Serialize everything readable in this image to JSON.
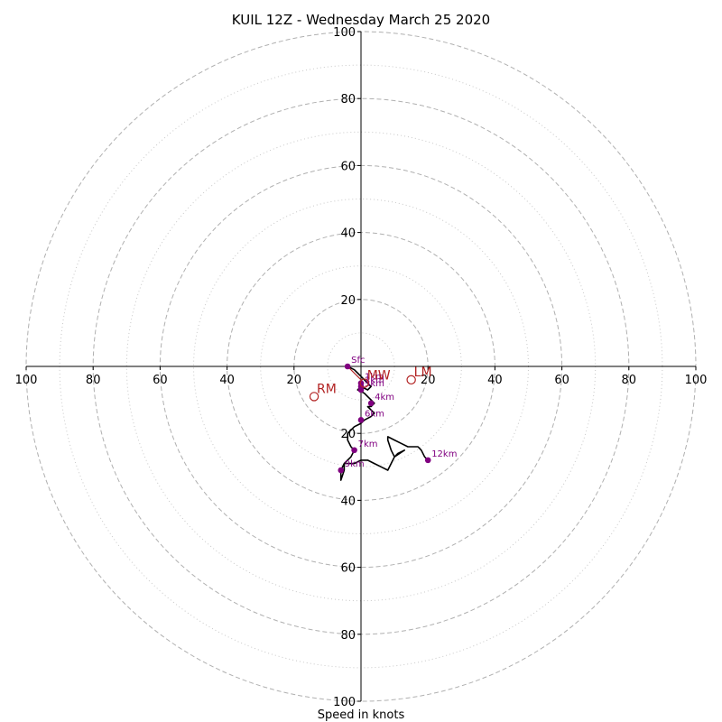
{
  "chart_data": {
    "type": "hodograph",
    "title": "KUIL 12Z - Wednesday March 25 2020",
    "xlabel": "Speed in knots",
    "xlim": [
      -100,
      100
    ],
    "ylim": [
      -100,
      100
    ],
    "ring_major": [
      20,
      40,
      60,
      80,
      100
    ],
    "ring_minor": [
      10,
      30,
      50,
      70,
      90
    ],
    "x_tick_labels": [
      "100",
      "80",
      "60",
      "40",
      "20",
      "20",
      "40",
      "60",
      "80",
      "100"
    ],
    "y_tick_labels": [
      "100",
      "80",
      "60",
      "40",
      "20",
      "20",
      "40",
      "60",
      "80",
      "100"
    ],
    "colors": {
      "trace": "#000000",
      "height_marker": "#800080",
      "motion": "#b22222",
      "grid": "#b0b0b0"
    },
    "trace": [
      [
        -4,
        0
      ],
      [
        -2,
        -1
      ],
      [
        0,
        -3
      ],
      [
        1,
        -4
      ],
      [
        2,
        -5
      ],
      [
        3,
        -6
      ],
      [
        2,
        -7
      ],
      [
        0,
        -6
      ],
      [
        -1,
        -7
      ],
      [
        1,
        -8
      ],
      [
        2,
        -9
      ],
      [
        3,
        -10
      ],
      [
        4,
        -11
      ],
      [
        3,
        -12
      ],
      [
        2,
        -12
      ],
      [
        3,
        -13
      ],
      [
        4,
        -14
      ],
      [
        3,
        -15
      ],
      [
        1,
        -16
      ],
      [
        0,
        -17
      ],
      [
        -2,
        -18
      ],
      [
        -3,
        -19
      ],
      [
        -4,
        -20
      ],
      [
        -4,
        -22
      ],
      [
        -3,
        -24
      ],
      [
        -2,
        -25
      ],
      [
        -3,
        -27
      ],
      [
        -5,
        -29
      ],
      [
        -6,
        -31
      ],
      [
        -6,
        -34
      ],
      [
        -5,
        -31
      ],
      [
        -5,
        -29
      ],
      [
        -2,
        -29
      ],
      [
        0,
        -28
      ],
      [
        2,
        -28
      ],
      [
        4,
        -29
      ],
      [
        6,
        -30
      ],
      [
        8,
        -31
      ],
      [
        9,
        -29
      ],
      [
        10,
        -27
      ],
      [
        11,
        -26
      ],
      [
        13,
        -25
      ],
      [
        10,
        -27
      ],
      [
        9,
        -29
      ],
      [
        10,
        -27
      ],
      [
        9,
        -25
      ],
      [
        8,
        -22
      ],
      [
        8,
        -21
      ],
      [
        10,
        -22
      ],
      [
        12,
        -23
      ],
      [
        14,
        -24
      ],
      [
        17,
        -24
      ],
      [
        18,
        -25
      ],
      [
        19,
        -27
      ],
      [
        20,
        -28
      ]
    ],
    "height_markers": [
      {
        "label": "Sfc",
        "u": -4,
        "v": 0
      },
      {
        "label": "1km",
        "u": 0,
        "v": -5
      },
      {
        "label": "2km",
        "u": 0,
        "v": -6
      },
      {
        "label": "3km",
        "u": 0,
        "v": -7
      },
      {
        "label": "4km",
        "u": 3,
        "v": -11
      },
      {
        "label": "6km",
        "u": 0,
        "v": -16
      },
      {
        "label": "7km",
        "u": -2,
        "v": -25
      },
      {
        "label": "9km",
        "u": -6,
        "v": -31
      },
      {
        "label": "12km",
        "u": 20,
        "v": -28
      }
    ],
    "storm_motion": [
      {
        "label": "RM",
        "u": -14,
        "v": -9
      },
      {
        "label": "LM",
        "u": 15,
        "v": -4
      },
      {
        "label": "MW",
        "u": 1,
        "v": -5
      }
    ]
  }
}
